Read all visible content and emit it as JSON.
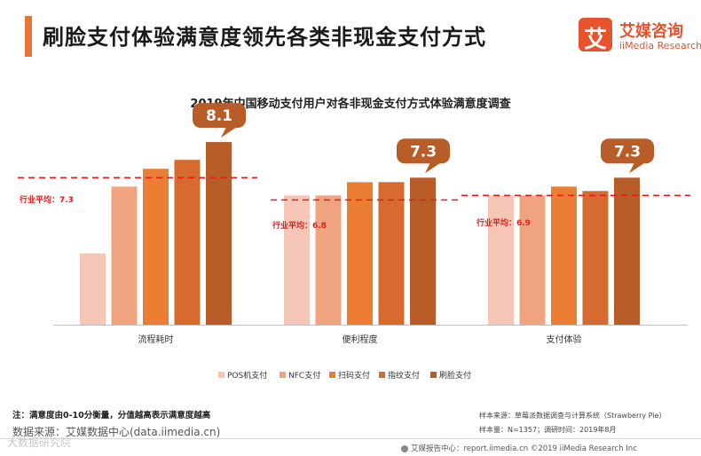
{
  "header": {
    "title": "刷脸支付体验满意度领先各类非现金支付方式",
    "logo_cn": "艾媒咨询",
    "logo_en": "iiMedia Research"
  },
  "chart_data": {
    "type": "bar",
    "title": "2019年中国移动支付用户对各非现金支付方式体验满意度调查",
    "categories": [
      "流程耗时",
      "便利程度",
      "支付体验"
    ],
    "series": [
      {
        "name": "POS机支付",
        "color": "#f5c6b5",
        "values": [
          5.6,
          6.9,
          6.9
        ]
      },
      {
        "name": "NFC支付",
        "color": "#f0a37f",
        "values": [
          7.1,
          6.9,
          6.9
        ]
      },
      {
        "name": "扫码支付",
        "color": "#ec7e34",
        "values": [
          7.5,
          7.2,
          7.1
        ]
      },
      {
        "name": "指纹支付",
        "color": "#d76a2f",
        "values": [
          7.7,
          7.2,
          7.0
        ]
      },
      {
        "name": "刷脸支付",
        "color": "#b85c28",
        "values": [
          8.1,
          7.3,
          7.3
        ]
      }
    ],
    "callouts": [
      "8.1",
      "7.3",
      "7.3"
    ],
    "averages": [
      {
        "label": "行业平均：7.3",
        "value": 7.3
      },
      {
        "label": "行业平均：6.8",
        "value": 6.8
      },
      {
        "label": "行业平均：6.9",
        "value": 6.9
      }
    ],
    "ylim": [
      4,
      8.5
    ],
    "legend_position": "bottom",
    "xlabel": "",
    "ylabel": ""
  },
  "colors": {
    "accent": "#e8763a",
    "average_line": "#e02020",
    "callout_bg": "#b85c28",
    "brand": "#e8532d"
  },
  "footnotes": {
    "note": "注：满意度由0-10分衡量，分值越高表示满意度越高",
    "source": "数据来源：艾媒数据中心(data.iimedia.cn)",
    "sample_source": "样本来源：草莓派数据调查与计算系统（Strawberry Pie）",
    "sample_size": "样本量：N=1357；调研时间：2019年8月",
    "footer": "艾媒报告中心：report.iimedia.cn   ©2019   iiMedia Research  Inc",
    "watermark": "大数据研究院"
  }
}
